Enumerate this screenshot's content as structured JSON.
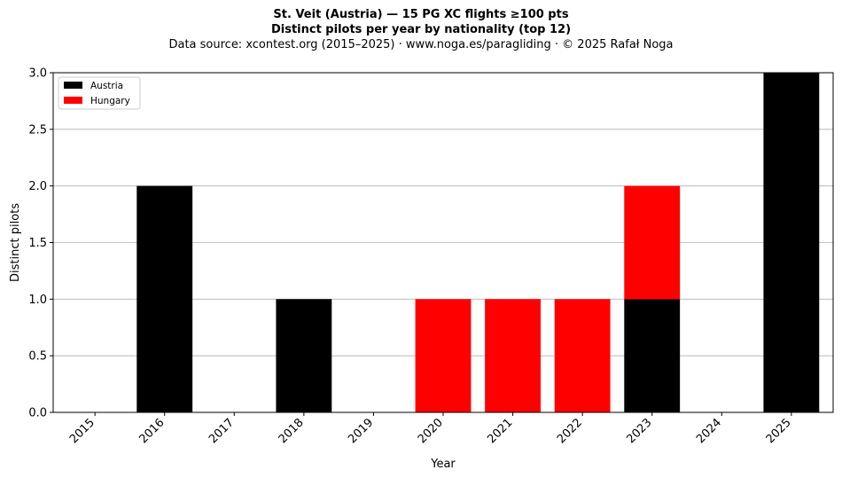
{
  "header": {
    "title_line1": "St. Veit (Austria)  —  15 PG XC flights ≥100 pts",
    "title_line2": "Distinct pilots per year by nationality (top 12)",
    "subtitle": "Data source: xcontest.org (2015–2025)  ·  www.noga.es/paragliding  ·  © 2025 Rafał Noga"
  },
  "chart_data": {
    "type": "bar",
    "stacked": true,
    "categories": [
      "2015",
      "2016",
      "2017",
      "2018",
      "2019",
      "2020",
      "2021",
      "2022",
      "2023",
      "2024",
      "2025"
    ],
    "series": [
      {
        "name": "Austria",
        "color": "#000000",
        "values": [
          0,
          2,
          0,
          1,
          0,
          0,
          0,
          0,
          1,
          0,
          3
        ]
      },
      {
        "name": "Hungary",
        "color": "#ff0000",
        "values": [
          0,
          0,
          0,
          0,
          0,
          1,
          1,
          1,
          1,
          0,
          0
        ]
      }
    ],
    "xlabel": "Year",
    "ylabel": "Distinct pilots",
    "ylim": [
      0,
      3
    ],
    "yticks": [
      "0.0",
      "0.5",
      "1.0",
      "1.5",
      "2.0",
      "2.5",
      "3.0"
    ],
    "grid": "y",
    "legend_position": "top-left"
  }
}
